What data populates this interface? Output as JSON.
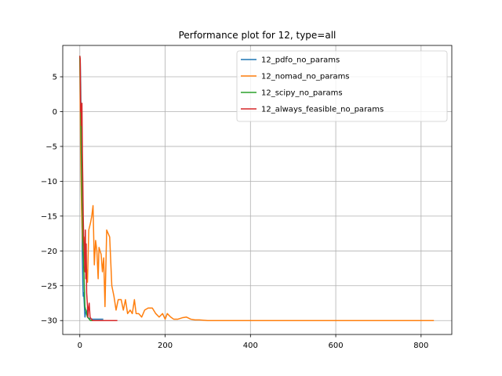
{
  "chart_data": {
    "type": "line",
    "title": "Performance plot for 12, type=all",
    "xlabel": "",
    "ylabel": "",
    "xlim": [
      -40,
      872
    ],
    "ylim": [
      -32,
      9.5
    ],
    "xticks": [
      0,
      200,
      400,
      600,
      800
    ],
    "yticks": [
      5,
      0,
      -5,
      -10,
      -15,
      -20,
      -25,
      -30
    ],
    "grid": true,
    "legend_position": "upper-right",
    "series": [
      {
        "name": "12_pdfo_no_params",
        "color": "#1f77b4",
        "points": [
          [
            0,
            8
          ],
          [
            1,
            7
          ],
          [
            2,
            4
          ],
          [
            3,
            -1
          ],
          [
            4,
            -10
          ],
          [
            5,
            -16
          ],
          [
            6,
            -21
          ],
          [
            7,
            -24.5
          ],
          [
            8,
            -26.5
          ],
          [
            9,
            -26
          ],
          [
            10,
            -27
          ],
          [
            12,
            -29.5
          ],
          [
            15,
            -28.5
          ],
          [
            18,
            -29.5
          ],
          [
            22,
            -29.7
          ],
          [
            30,
            -29.8
          ],
          [
            40,
            -29.8
          ],
          [
            55,
            -29.8
          ]
        ]
      },
      {
        "name": "12_nomad_no_params",
        "color": "#ff7f0e",
        "points": [
          [
            0,
            8
          ],
          [
            2,
            -6
          ],
          [
            4,
            -14
          ],
          [
            6,
            -18
          ],
          [
            8,
            -20
          ],
          [
            10,
            -21
          ],
          [
            12,
            -18
          ],
          [
            15,
            -22
          ],
          [
            18,
            -24.5
          ],
          [
            21,
            -17
          ],
          [
            25,
            -16
          ],
          [
            28,
            -15
          ],
          [
            31,
            -13.5
          ],
          [
            34,
            -22
          ],
          [
            37,
            -18.5
          ],
          [
            40,
            -20
          ],
          [
            43,
            -24
          ],
          [
            45,
            -19.5
          ],
          [
            50,
            -20.5
          ],
          [
            53,
            -23
          ],
          [
            56,
            -21
          ],
          [
            59,
            -28
          ],
          [
            63,
            -17
          ],
          [
            70,
            -18
          ],
          [
            75,
            -25
          ],
          [
            80,
            -26.5
          ],
          [
            85,
            -28.5
          ],
          [
            90,
            -27
          ],
          [
            97,
            -27
          ],
          [
            102,
            -28.5
          ],
          [
            107,
            -27
          ],
          [
            112,
            -29
          ],
          [
            118,
            -28.5
          ],
          [
            123,
            -29
          ],
          [
            128,
            -27
          ],
          [
            132,
            -29
          ],
          [
            138,
            -29
          ],
          [
            145,
            -29.5
          ],
          [
            152,
            -28.5
          ],
          [
            160,
            -28.2
          ],
          [
            170,
            -28.2
          ],
          [
            178,
            -29
          ],
          [
            186,
            -29.5
          ],
          [
            194,
            -29
          ],
          [
            200,
            -29.8
          ],
          [
            205,
            -29
          ],
          [
            213,
            -29.5
          ],
          [
            220,
            -29.8
          ],
          [
            230,
            -29.8
          ],
          [
            240,
            -29.6
          ],
          [
            250,
            -29.5
          ],
          [
            260,
            -29.8
          ],
          [
            270,
            -29.9
          ],
          [
            280,
            -29.9
          ],
          [
            300,
            -30
          ],
          [
            330,
            -30
          ],
          [
            400,
            -30
          ],
          [
            500,
            -30
          ],
          [
            600,
            -30
          ],
          [
            700,
            -30
          ],
          [
            800,
            -30
          ],
          [
            830,
            -30
          ]
        ]
      },
      {
        "name": "12_scipy_no_params",
        "color": "#2ca02c",
        "points": [
          [
            0,
            8
          ],
          [
            2,
            1
          ],
          [
            5,
            -12
          ],
          [
            8,
            -20
          ],
          [
            12,
            -28
          ],
          [
            18,
            -29.5
          ],
          [
            25,
            -30
          ],
          [
            30,
            -30
          ]
        ]
      },
      {
        "name": "12_always_feasible_no_params",
        "color": "#d62728",
        "points": [
          [
            0,
            8
          ],
          [
            1,
            7.5
          ],
          [
            2,
            0
          ],
          [
            3,
            1
          ],
          [
            4,
            -2
          ],
          [
            5,
            1.2
          ],
          [
            6,
            -6
          ],
          [
            7,
            -10
          ],
          [
            8,
            -15
          ],
          [
            9,
            -18
          ],
          [
            10,
            -19
          ],
          [
            11,
            -21
          ],
          [
            12,
            -23
          ],
          [
            13,
            -17
          ],
          [
            14,
            -24
          ],
          [
            15,
            -19
          ],
          [
            16,
            -26
          ],
          [
            17,
            -27
          ],
          [
            18,
            -28
          ],
          [
            19,
            -29.5
          ],
          [
            20,
            -28.5
          ],
          [
            22,
            -27.5
          ],
          [
            24,
            -29.5
          ],
          [
            26,
            -29.7
          ],
          [
            30,
            -30
          ],
          [
            40,
            -30
          ],
          [
            60,
            -30
          ],
          [
            88,
            -30
          ]
        ]
      }
    ]
  }
}
